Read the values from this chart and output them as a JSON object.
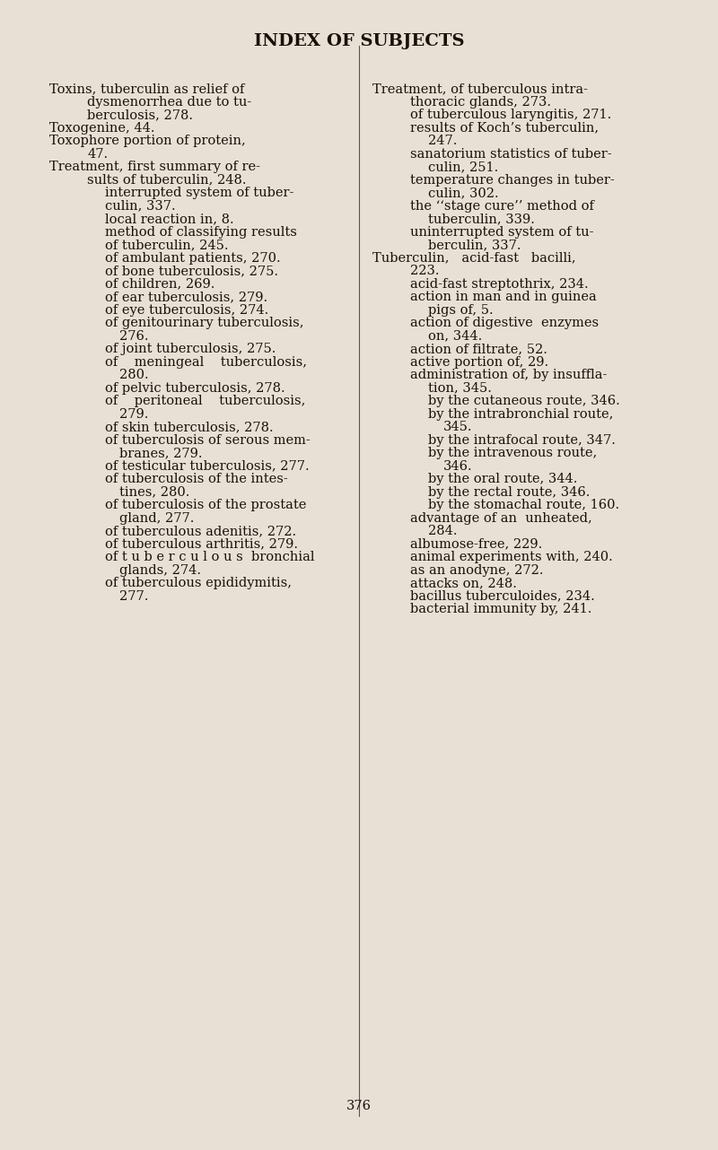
{
  "background_color": "#e8e0d5",
  "title": "INDEX OF SUBJECTS",
  "title_fontsize": 14,
  "title_font": "serif",
  "body_fontsize": 10.5,
  "body_font": "serif",
  "page_number": "376",
  "left_column": [
    [
      "Toxins, tuberculin as relief of",
      0,
      false
    ],
    [
      "dysmenorrhea due to tu-",
      1,
      false
    ],
    [
      "berculosis, 278.",
      1,
      false
    ],
    [
      "Toxogenine, 44.",
      0,
      false
    ],
    [
      "Toxophore portion of protein,",
      0,
      false
    ],
    [
      "47.",
      1,
      false
    ],
    [
      "Treatment, first summary of re-",
      0,
      false
    ],
    [
      "sults of tuberculin, 248.",
      1,
      false
    ],
    [
      "interrupted system of tuber-",
      2,
      false
    ],
    [
      "culin, 337.",
      2,
      false
    ],
    [
      "local reaction in, 8.",
      2,
      false
    ],
    [
      "method of classifying results",
      2,
      false
    ],
    [
      "of tuberculin, 245.",
      2,
      false
    ],
    [
      "of ambulant patients, 270.",
      2,
      false
    ],
    [
      "of bone tuberculosis, 275.",
      2,
      false
    ],
    [
      "of children, 269.",
      2,
      false
    ],
    [
      "of ear tuberculosis, 279.",
      2,
      false
    ],
    [
      "of eye tuberculosis, 274.",
      2,
      false
    ],
    [
      "of genitourinary tuberculosis,",
      2,
      false
    ],
    [
      "276.",
      3,
      false
    ],
    [
      "of joint tuberculosis, 275.",
      2,
      false
    ],
    [
      "of    meningeal    tuberculosis,",
      2,
      false
    ],
    [
      "280.",
      3,
      false
    ],
    [
      "of pelvic tuberculosis, 278.",
      2,
      false
    ],
    [
      "of    peritoneal    tuberculosis,",
      2,
      false
    ],
    [
      "279.",
      3,
      false
    ],
    [
      "of skin tuberculosis, 278.",
      2,
      false
    ],
    [
      "of tuberculosis of serous mem-",
      2,
      false
    ],
    [
      "branes, 279.",
      3,
      false
    ],
    [
      "of testicular tuberculosis, 277.",
      2,
      false
    ],
    [
      "of tuberculosis of the intes-",
      2,
      false
    ],
    [
      "tines, 280.",
      3,
      false
    ],
    [
      "of tuberculosis of the prostate",
      2,
      false
    ],
    [
      "gland, 277.",
      3,
      false
    ],
    [
      "of tuberculous adenitis, 272.",
      2,
      false
    ],
    [
      "of tuberculous arthritis, 279.",
      2,
      false
    ],
    [
      "of t u b e r c u l o u s  bronchial",
      2,
      false
    ],
    [
      "glands, 274.",
      3,
      false
    ],
    [
      "of tuberculous epididymitis,",
      2,
      false
    ],
    [
      "277.",
      3,
      false
    ]
  ],
  "right_column": [
    [
      "Treatment, of tuberculous intra-",
      0,
      false
    ],
    [
      "thoracic glands, 273.",
      1,
      false
    ],
    [
      "of tuberculous laryngitis, 271.",
      1,
      false
    ],
    [
      "results of Koch’s tuberculin,",
      1,
      false
    ],
    [
      "247.",
      2,
      false
    ],
    [
      "sanatorium statistics of tuber-",
      1,
      false
    ],
    [
      "culin, 251.",
      2,
      false
    ],
    [
      "temperature changes in tuber-",
      1,
      false
    ],
    [
      "culin, 302.",
      2,
      false
    ],
    [
      "the ‘‘stage cure’’ method of",
      1,
      false
    ],
    [
      "tuberculin, 339.",
      2,
      false
    ],
    [
      "uninterrupted system of tu-",
      1,
      false
    ],
    [
      "berculin, 337.",
      2,
      false
    ],
    [
      "Tuberculin,   acid-fast   bacilli,",
      0,
      false
    ],
    [
      "223.",
      1,
      false
    ],
    [
      "acid-fast streptothrix, 234.",
      1,
      false
    ],
    [
      "action in man and in guinea",
      1,
      false
    ],
    [
      "pigs of, 5.",
      2,
      false
    ],
    [
      "action of digestive  enzymes",
      1,
      false
    ],
    [
      "on, 344.",
      2,
      false
    ],
    [
      "action of filtrate, 52.",
      1,
      false
    ],
    [
      "active portion of, 29.",
      1,
      false
    ],
    [
      "administration of, by insuffla-",
      1,
      false
    ],
    [
      "tion, 345.",
      2,
      false
    ],
    [
      "by the cutaneous route, 346.",
      2,
      false
    ],
    [
      "by the intrabronchial route,",
      2,
      false
    ],
    [
      "345.",
      3,
      false
    ],
    [
      "by the intrafocal route, 347.",
      2,
      false
    ],
    [
      "by the intravenous route,",
      2,
      false
    ],
    [
      "346.",
      3,
      false
    ],
    [
      "by the oral route, 344.",
      2,
      false
    ],
    [
      "by the rectal route, 346.",
      2,
      false
    ],
    [
      "by the stomachal route, 160.",
      2,
      false
    ],
    [
      "advantage of an  unheated,",
      1,
      false
    ],
    [
      "284.",
      2,
      false
    ],
    [
      "albumose-free, 229.",
      1,
      false
    ],
    [
      "animal experiments with, 240.",
      1,
      false
    ],
    [
      "as an anodyne, 272.",
      1,
      false
    ],
    [
      "attacks on, 248.",
      1,
      false
    ],
    [
      "bacillus tuberculoides, 234.",
      1,
      false
    ],
    [
      "bacterial immunity by, 241.",
      1,
      false
    ]
  ]
}
